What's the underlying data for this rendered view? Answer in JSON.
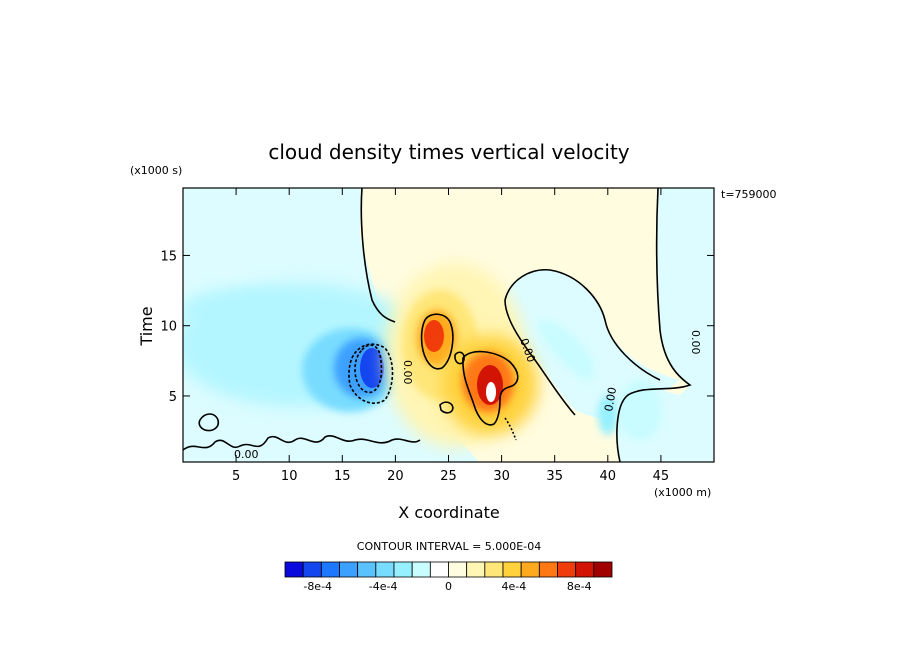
{
  "chart_data": {
    "type": "heatmap",
    "title": "cloud density times vertical velocity",
    "xlabel": "X coordinate",
    "ylabel": "Time",
    "x_unit": "(x1000 m)",
    "y_unit": "(x1000 s)",
    "annotation": "t=759000",
    "contour_interval_label": "CONTOUR INTERVAL = 5.000E-04",
    "contour_interval": 0.0005,
    "contour_label": "0.00",
    "xlim": [
      0,
      50
    ],
    "ylim": [
      0.3,
      19.8
    ],
    "x_ticks": [
      5,
      10,
      15,
      20,
      25,
      30,
      35,
      40,
      45
    ],
    "y_ticks": [
      5,
      10,
      15
    ],
    "colorbar": {
      "vmin": -0.001,
      "vmax": 0.001,
      "tick_labels": [
        "-8e-4",
        "-4e-4",
        "0",
        "4e-4",
        "8e-4"
      ],
      "tick_values": [
        -0.0008,
        -0.0004,
        0,
        0.0004,
        0.0008
      ],
      "colors": [
        "#0a0adc",
        "#1446f0",
        "#1e78ff",
        "#3ca0ff",
        "#5ac3ff",
        "#78dcff",
        "#96f0ff",
        "#c8fcff",
        "#ffffff",
        "#fffce0",
        "#fff5b4",
        "#ffe678",
        "#ffd23c",
        "#ffaa1e",
        "#ff7814",
        "#f03c0a",
        "#d21405",
        "#a00000"
      ]
    },
    "features": [
      {
        "kind": "max",
        "x": 29.3,
        "y": 5.5,
        "value": 0.0011
      },
      {
        "kind": "max",
        "x": 23.8,
        "y": 9.5,
        "value": 0.0008
      },
      {
        "kind": "min",
        "x": 18.0,
        "y": 7.0,
        "value": -0.0009
      }
    ]
  }
}
